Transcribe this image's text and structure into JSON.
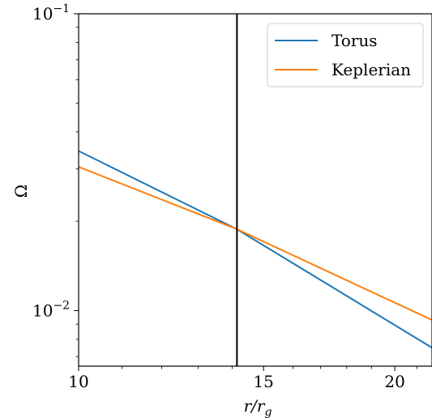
{
  "chart_data": {
    "type": "line",
    "xlabel": "r/r_g",
    "ylabel": "Ω",
    "xscale": "log",
    "yscale": "log",
    "xlim": [
      10,
      21.7
    ],
    "ylim": [
      0.0065,
      0.1
    ],
    "grid": false,
    "legend_position": "top-right",
    "vline_x": 14.15,
    "x_ticks": [
      {
        "value": 10,
        "label": "10"
      },
      {
        "value": 15,
        "label": "15"
      },
      {
        "value": 20,
        "label": "20"
      }
    ],
    "y_ticks": [
      {
        "value": 0.1,
        "base": "10",
        "exp": "−1"
      },
      {
        "value": 0.01,
        "base": "10",
        "exp": "−2"
      }
    ],
    "series": [
      {
        "name": "Torus",
        "color": "#1f77b4",
        "x": [
          10,
          14.15,
          21.7
        ],
        "y": [
          0.0345,
          0.0188,
          0.0075
        ]
      },
      {
        "name": "Keplerian",
        "color": "#ff7f0e",
        "x": [
          10,
          14.15,
          21.7
        ],
        "y": [
          0.0305,
          0.0188,
          0.0093
        ]
      }
    ]
  }
}
